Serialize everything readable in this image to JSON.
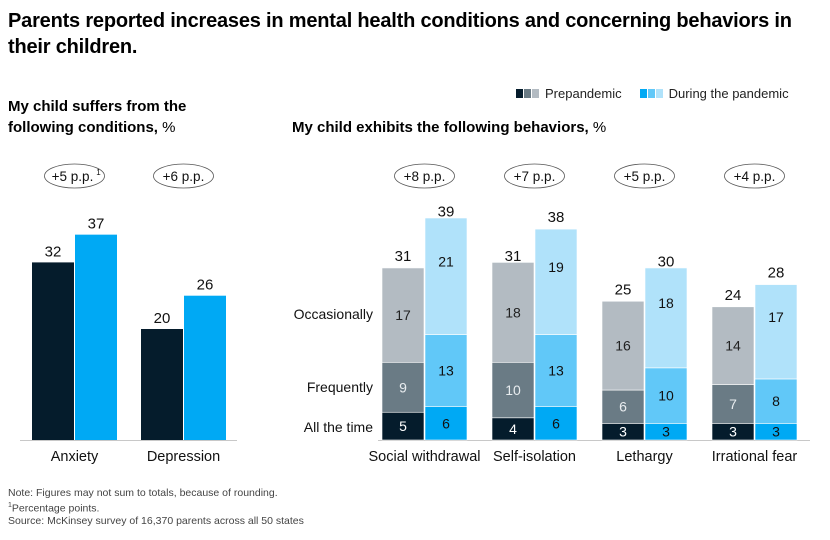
{
  "title": "Parents reported increases in mental health conditions and concerning behaviors in their children.",
  "legend": {
    "prepandemic": "Prepandemic",
    "during": "During the pandemic"
  },
  "colors": {
    "pre_all": "#051c2c",
    "pre_freq": "#6a7b85",
    "pre_occ": "#b3bbc2",
    "dur_all": "#00a9f4",
    "dur_freq": "#61c8f8",
    "dur_occ": "#b0e2fa",
    "axis": "#c8c8c8"
  },
  "footnotes": {
    "note": "Note: Figures may not sum to totals, because of rounding.",
    "marker": "1",
    "pp": "Percentage points.",
    "source": "Source: McKinsey survey of 16,370 parents across all 50 states"
  },
  "chart_data": [
    {
      "type": "bar",
      "title": "My child suffers from the following conditions,",
      "title_unit": "%",
      "categories": [
        "Anxiety",
        "Depression"
      ],
      "series": [
        {
          "name": "Prepandemic",
          "values": [
            32,
            20
          ]
        },
        {
          "name": "During the pandemic",
          "values": [
            37,
            26
          ]
        }
      ],
      "annotations": [
        {
          "text": "+5 p.p.",
          "sup": "1"
        },
        {
          "text": "+6 p.p.",
          "sup": ""
        }
      ],
      "ylim": [
        0,
        40
      ],
      "grid": false,
      "legend": "top-right"
    },
    {
      "type": "bar",
      "stacked": true,
      "title": "My child exhibits the following behaviors,",
      "title_unit": "%",
      "categories": [
        "Social withdrawal",
        "Self-isolation",
        "Lethargy",
        "Irrational fear"
      ],
      "stack_labels": [
        "All the time",
        "Frequently",
        "Occasionally"
      ],
      "series": [
        {
          "name": "Prepandemic",
          "totals": [
            31,
            31,
            25,
            24
          ],
          "segments": {
            "All the time": [
              5,
              4,
              3,
              3
            ],
            "Frequently": [
              9,
              10,
              6,
              7
            ],
            "Occasionally": [
              17,
              18,
              16,
              14
            ]
          }
        },
        {
          "name": "During the pandemic",
          "totals": [
            39,
            38,
            30,
            28
          ],
          "segments": {
            "All the time": [
              6,
              6,
              3,
              3
            ],
            "Frequently": [
              13,
              13,
              10,
              8
            ],
            "Occasionally": [
              21,
              19,
              18,
              17
            ]
          }
        }
      ],
      "annotations": [
        {
          "text": "+8 p.p."
        },
        {
          "text": "+7 p.p."
        },
        {
          "text": "+5 p.p."
        },
        {
          "text": "+4 p.p."
        }
      ],
      "ylim": [
        0,
        40
      ],
      "grid": false,
      "legend": "top-right"
    }
  ]
}
